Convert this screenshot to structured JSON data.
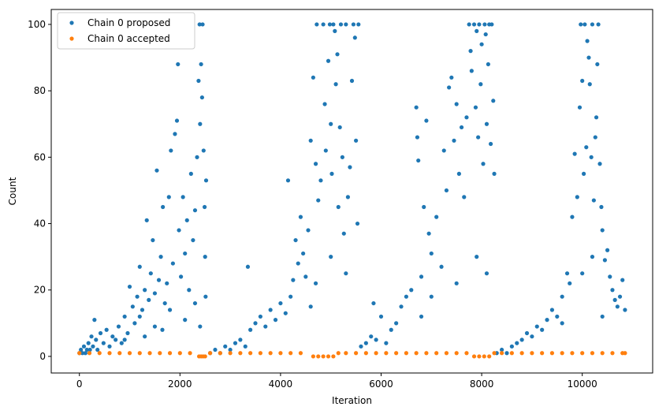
{
  "chart_data": {
    "type": "scatter",
    "title": "",
    "xlabel": "Iteration",
    "ylabel": "Count",
    "xlim": [
      -560,
      11400
    ],
    "ylim": [
      -5,
      104.5
    ],
    "xticks": [
      0,
      2000,
      4000,
      6000,
      8000,
      10000
    ],
    "yticks": [
      0,
      20,
      40,
      60,
      80,
      100
    ],
    "legend_position": "top-left",
    "grid": false,
    "series": [
      {
        "name": "Chain 0 proposed",
        "color": "#1f77b4",
        "points": [
          [
            0,
            1
          ],
          [
            30,
            2
          ],
          [
            60,
            1
          ],
          [
            90,
            3
          ],
          [
            120,
            1
          ],
          [
            150,
            2
          ],
          [
            180,
            4
          ],
          [
            210,
            2
          ],
          [
            240,
            6
          ],
          [
            270,
            3
          ],
          [
            300,
            11
          ],
          [
            330,
            5
          ],
          [
            360,
            2
          ],
          [
            420,
            7
          ],
          [
            480,
            4
          ],
          [
            540,
            8
          ],
          [
            600,
            3
          ],
          [
            660,
            6
          ],
          [
            720,
            5
          ],
          [
            780,
            9
          ],
          [
            840,
            4
          ],
          [
            900,
            12
          ],
          [
            960,
            7
          ],
          [
            1000,
            21
          ],
          [
            1060,
            15
          ],
          [
            1100,
            10
          ],
          [
            1150,
            18
          ],
          [
            1200,
            27
          ],
          [
            1250,
            14
          ],
          [
            1300,
            20
          ],
          [
            1340,
            41
          ],
          [
            1380,
            17
          ],
          [
            1420,
            25
          ],
          [
            1460,
            35
          ],
          [
            1500,
            19
          ],
          [
            1540,
            56
          ],
          [
            1580,
            23
          ],
          [
            1620,
            30
          ],
          [
            1660,
            45
          ],
          [
            1700,
            16
          ],
          [
            1740,
            22
          ],
          [
            1780,
            48
          ],
          [
            1820,
            62
          ],
          [
            1860,
            28
          ],
          [
            1900,
            67
          ],
          [
            1940,
            71
          ],
          [
            1960,
            88
          ],
          [
            1980,
            38
          ],
          [
            2020,
            24
          ],
          [
            2060,
            48
          ],
          [
            2100,
            31
          ],
          [
            2140,
            41
          ],
          [
            2180,
            20
          ],
          [
            2220,
            55
          ],
          [
            2260,
            35
          ],
          [
            2300,
            44
          ],
          [
            2340,
            60
          ],
          [
            2370,
            83
          ],
          [
            2390,
            100
          ],
          [
            2400,
            70
          ],
          [
            2420,
            88
          ],
          [
            2440,
            78
          ],
          [
            2450,
            100
          ],
          [
            2470,
            62
          ],
          [
            2490,
            45
          ],
          [
            2500,
            30
          ],
          [
            2510,
            18
          ],
          [
            2520,
            53
          ],
          [
            1200,
            12
          ],
          [
            1500,
            9
          ],
          [
            1800,
            14
          ],
          [
            2100,
            11
          ],
          [
            2300,
            16
          ],
          [
            1650,
            8
          ],
          [
            2400,
            9
          ],
          [
            900,
            5
          ],
          [
            1300,
            6
          ],
          [
            2600,
            1
          ],
          [
            2700,
            2
          ],
          [
            2800,
            1
          ],
          [
            2900,
            3
          ],
          [
            3000,
            2
          ],
          [
            3100,
            4
          ],
          [
            3200,
            5
          ],
          [
            3300,
            3
          ],
          [
            3350,
            27
          ],
          [
            3400,
            8
          ],
          [
            3500,
            10
          ],
          [
            3600,
            12
          ],
          [
            3700,
            9
          ],
          [
            3800,
            14
          ],
          [
            3900,
            11
          ],
          [
            4000,
            16
          ],
          [
            4100,
            13
          ],
          [
            4150,
            53
          ],
          [
            4200,
            18
          ],
          [
            4250,
            23
          ],
          [
            4300,
            35
          ],
          [
            4350,
            28
          ],
          [
            4400,
            42
          ],
          [
            4450,
            31
          ],
          [
            4500,
            24
          ],
          [
            4550,
            38
          ],
          [
            4600,
            65
          ],
          [
            4650,
            84
          ],
          [
            4700,
            58
          ],
          [
            4720,
            100
          ],
          [
            4750,
            47
          ],
          [
            4800,
            53
          ],
          [
            4850,
            100
          ],
          [
            4880,
            76
          ],
          [
            4900,
            62
          ],
          [
            4950,
            89
          ],
          [
            4980,
            100
          ],
          [
            5000,
            70
          ],
          [
            5020,
            55
          ],
          [
            5050,
            100
          ],
          [
            5080,
            98
          ],
          [
            5100,
            82
          ],
          [
            5130,
            91
          ],
          [
            5150,
            45
          ],
          [
            5180,
            69
          ],
          [
            5200,
            100
          ],
          [
            5230,
            60
          ],
          [
            5260,
            37
          ],
          [
            5300,
            100
          ],
          [
            5340,
            48
          ],
          [
            5380,
            57
          ],
          [
            5420,
            83
          ],
          [
            5450,
            100
          ],
          [
            5480,
            96
          ],
          [
            5500,
            65
          ],
          [
            5530,
            40
          ],
          [
            5550,
            100
          ],
          [
            4700,
            22
          ],
          [
            5000,
            30
          ],
          [
            5300,
            25
          ],
          [
            4600,
            15
          ],
          [
            5600,
            3
          ],
          [
            5700,
            4
          ],
          [
            5800,
            6
          ],
          [
            5850,
            16
          ],
          [
            5900,
            5
          ],
          [
            6000,
            12
          ],
          [
            6100,
            4
          ],
          [
            6200,
            8
          ],
          [
            6300,
            10
          ],
          [
            6400,
            15
          ],
          [
            6500,
            18
          ],
          [
            6600,
            20
          ],
          [
            6700,
            75
          ],
          [
            6720,
            66
          ],
          [
            6740,
            59
          ],
          [
            6800,
            24
          ],
          [
            6850,
            45
          ],
          [
            6900,
            71
          ],
          [
            6950,
            37
          ],
          [
            7000,
            31
          ],
          [
            7100,
            42
          ],
          [
            7200,
            27
          ],
          [
            7250,
            62
          ],
          [
            7300,
            50
          ],
          [
            7350,
            81
          ],
          [
            7400,
            84
          ],
          [
            7450,
            65
          ],
          [
            7500,
            76
          ],
          [
            7550,
            55
          ],
          [
            7600,
            69
          ],
          [
            7650,
            48
          ],
          [
            7700,
            72
          ],
          [
            7750,
            100
          ],
          [
            7780,
            92
          ],
          [
            7800,
            86
          ],
          [
            7850,
            100
          ],
          [
            7880,
            75
          ],
          [
            7900,
            98
          ],
          [
            7930,
            66
          ],
          [
            7950,
            100
          ],
          [
            7980,
            82
          ],
          [
            8000,
            94
          ],
          [
            8030,
            58
          ],
          [
            8060,
            100
          ],
          [
            8080,
            97
          ],
          [
            8100,
            70
          ],
          [
            8130,
            88
          ],
          [
            8150,
            100
          ],
          [
            8180,
            64
          ],
          [
            8200,
            100
          ],
          [
            8230,
            77
          ],
          [
            8250,
            55
          ],
          [
            7000,
            18
          ],
          [
            7500,
            22
          ],
          [
            7900,
            30
          ],
          [
            8100,
            25
          ],
          [
            6800,
            12
          ],
          [
            8300,
            1
          ],
          [
            8400,
            2
          ],
          [
            8500,
            1
          ],
          [
            8600,
            3
          ],
          [
            8700,
            4
          ],
          [
            8800,
            5
          ],
          [
            8900,
            7
          ],
          [
            9000,
            6
          ],
          [
            9100,
            9
          ],
          [
            9200,
            8
          ],
          [
            9300,
            11
          ],
          [
            9400,
            14
          ],
          [
            9500,
            12
          ],
          [
            9600,
            18
          ],
          [
            9700,
            25
          ],
          [
            9750,
            22
          ],
          [
            9800,
            42
          ],
          [
            9850,
            61
          ],
          [
            9900,
            48
          ],
          [
            9950,
            75
          ],
          [
            9970,
            100
          ],
          [
            10000,
            83
          ],
          [
            10030,
            55
          ],
          [
            10050,
            100
          ],
          [
            10080,
            63
          ],
          [
            10100,
            95
          ],
          [
            10130,
            90
          ],
          [
            10150,
            82
          ],
          [
            10180,
            60
          ],
          [
            10200,
            100
          ],
          [
            10230,
            47
          ],
          [
            10260,
            66
          ],
          [
            10280,
            72
          ],
          [
            10300,
            88
          ],
          [
            10320,
            100
          ],
          [
            10350,
            58
          ],
          [
            10380,
            45
          ],
          [
            10400,
            38
          ],
          [
            10450,
            29
          ],
          [
            10500,
            32
          ],
          [
            10550,
            24
          ],
          [
            10600,
            20
          ],
          [
            10650,
            17
          ],
          [
            10700,
            15
          ],
          [
            10750,
            18
          ],
          [
            10800,
            23
          ],
          [
            10850,
            14
          ],
          [
            10000,
            25
          ],
          [
            10200,
            30
          ],
          [
            9600,
            10
          ],
          [
            10400,
            12
          ]
        ]
      },
      {
        "name": "Chain 0 accepted",
        "color": "#ff7f0e",
        "points": [
          [
            0,
            1
          ],
          [
            200,
            1
          ],
          [
            400,
            1
          ],
          [
            600,
            1
          ],
          [
            800,
            1
          ],
          [
            1000,
            1
          ],
          [
            1200,
            1
          ],
          [
            1400,
            1
          ],
          [
            1600,
            1
          ],
          [
            1800,
            1
          ],
          [
            2000,
            1
          ],
          [
            2200,
            1
          ],
          [
            2380,
            0
          ],
          [
            2420,
            0
          ],
          [
            2460,
            0
          ],
          [
            2500,
            0
          ],
          [
            2600,
            1
          ],
          [
            2800,
            1
          ],
          [
            3000,
            1
          ],
          [
            3200,
            1
          ],
          [
            3400,
            1
          ],
          [
            3600,
            1
          ],
          [
            3800,
            1
          ],
          [
            4000,
            1
          ],
          [
            4200,
            1
          ],
          [
            4400,
            1
          ],
          [
            4650,
            0
          ],
          [
            4750,
            0
          ],
          [
            4850,
            0
          ],
          [
            4950,
            0
          ],
          [
            5050,
            0
          ],
          [
            5150,
            1
          ],
          [
            5300,
            1
          ],
          [
            5500,
            1
          ],
          [
            5700,
            1
          ],
          [
            5900,
            1
          ],
          [
            6100,
            1
          ],
          [
            6300,
            1
          ],
          [
            6500,
            1
          ],
          [
            6700,
            1
          ],
          [
            6900,
            1
          ],
          [
            7100,
            1
          ],
          [
            7300,
            1
          ],
          [
            7500,
            1
          ],
          [
            7700,
            1
          ],
          [
            7850,
            0
          ],
          [
            7950,
            0
          ],
          [
            8050,
            0
          ],
          [
            8150,
            0
          ],
          [
            8250,
            1
          ],
          [
            8400,
            1
          ],
          [
            8600,
            1
          ],
          [
            8800,
            1
          ],
          [
            9000,
            1
          ],
          [
            9200,
            1
          ],
          [
            9400,
            1
          ],
          [
            9600,
            1
          ],
          [
            9800,
            1
          ],
          [
            10000,
            1
          ],
          [
            10200,
            1
          ],
          [
            10400,
            1
          ],
          [
            10600,
            1
          ],
          [
            10800,
            1
          ],
          [
            10850,
            1
          ]
        ]
      }
    ]
  }
}
